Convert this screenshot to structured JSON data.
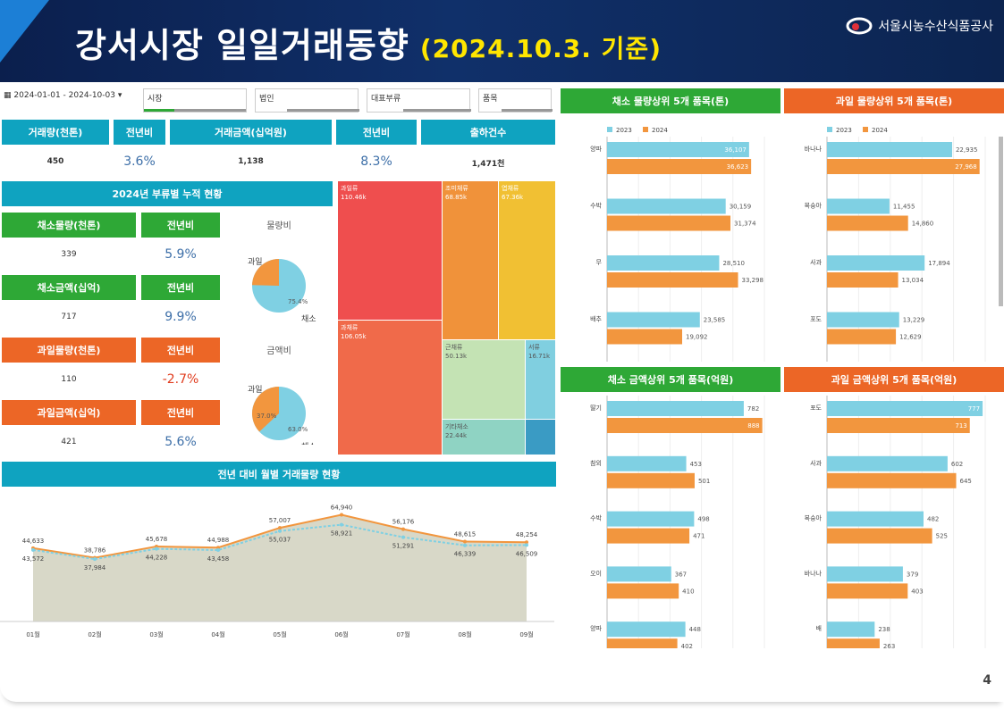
{
  "header": {
    "title": "강서시장 일일거래동향",
    "date": "(2024.10.3. 기준)",
    "logo_text": "서울시농수산식품공사"
  },
  "filters": {
    "date_range": "2024-01-01 - 2024-10-03",
    "market": "시장",
    "corp": "법인",
    "category": "대표부류",
    "item": "품목"
  },
  "kpi": {
    "labels": [
      "거래량(천톤)",
      "전년비",
      "거래금액(십억원)",
      "전년비",
      "출하건수"
    ],
    "values": [
      "450",
      "3.6%",
      "1,138",
      "8.3%",
      "1,471천"
    ]
  },
  "cumulative": {
    "title": "2024년 부류별 누적 현황",
    "rows": [
      {
        "label": "채소물량(천톤)",
        "yoy_label": "전년비",
        "value": "339",
        "yoy": "5.9%",
        "color": "green"
      },
      {
        "label": "채소금액(십억)",
        "yoy_label": "전년비",
        "value": "717",
        "yoy": "9.9%",
        "color": "green"
      },
      {
        "label": "과일물량(천톤)",
        "yoy_label": "전년비",
        "value": "110",
        "yoy": "-2.7%",
        "color": "orange"
      },
      {
        "label": "과일금액(십억)",
        "yoy_label": "전년비",
        "value": "421",
        "yoy": "5.6%",
        "color": "orange"
      }
    ],
    "pie1": {
      "title": "물량비",
      "fruit_label": "과일",
      "veg_label": "채소",
      "veg_pct": "75.4%",
      "veg": 75.4
    },
    "pie2": {
      "title": "금액비",
      "fruit_label": "과일",
      "veg_label": "채소",
      "veg_pct": "63.0%",
      "fruit_pct": "37.0%",
      "veg": 63.0
    }
  },
  "treemap": [
    {
      "name": "과일류",
      "value": "110.46k",
      "color": "#ef4e4e"
    },
    {
      "name": "조미채류",
      "value": "68.85k",
      "color": "#f0923a"
    },
    {
      "name": "엽채류",
      "value": "67.36k",
      "color": "#f1c033"
    },
    {
      "name": "과채류",
      "value": "106.05k",
      "color": "#f06a4a"
    },
    {
      "name": "근채류",
      "value": "50.13k",
      "color": "#c4e3b4"
    },
    {
      "name": "서류",
      "value": "16.71k",
      "color": "#80cfe0"
    },
    {
      "name": "기타채소",
      "value": "22.44k",
      "color": "#8fd3c3"
    },
    {
      "name": "",
      "value": "",
      "color": "#3a9bc4"
    }
  ],
  "monthly": {
    "title": "전년 대비 월별 거래물량 현황",
    "chart_data": {
      "type": "area",
      "categories": [
        "01월",
        "02월",
        "03월",
        "04월",
        "05월",
        "06월",
        "07월",
        "08월",
        "09월"
      ],
      "series": [
        {
          "values": [
            44633,
            38786,
            45678,
            44988,
            57007,
            64940,
            56176,
            48615,
            48254
          ],
          "labels": [
            "44,633",
            "38,786",
            "45,678",
            "44,988",
            "57,007",
            "64,940",
            "56,176",
            "48,615",
            "48,254"
          ]
        },
        {
          "values": [
            43572,
            37984,
            44228,
            43458,
            55037,
            58921,
            51291,
            46339,
            46509
          ],
          "labels": [
            "43,572",
            "37,984",
            "44,228",
            "43,458",
            "55,037",
            "58,921",
            "51,291",
            "46,339",
            "46,509"
          ]
        }
      ]
    }
  },
  "top_panels": [
    {
      "title": "채소 물량상위 5개 품목(톤)",
      "color": "green",
      "legend": [
        "2023",
        "2024"
      ],
      "chart_data": {
        "type": "bar",
        "categories": [
          "양파",
          "수박",
          "무",
          "배추"
        ],
        "series": [
          {
            "name": "2023",
            "values": [
              36107,
              30159,
              28510,
              23585
            ],
            "labels": [
              "36,107",
              "30,159",
              "28,510",
              "23,585"
            ]
          },
          {
            "name": "2024",
            "values": [
              36623,
              31374,
              33298,
              19092
            ],
            "labels": [
              "36,623",
              "31,374",
              "33,298",
              "19,092"
            ]
          }
        ],
        "xmax": 40000
      }
    },
    {
      "title": "과일 물량상위 5개 품목(톤)",
      "color": "orange",
      "legend": [
        "2023",
        "2024"
      ],
      "chart_data": {
        "type": "bar",
        "categories": [
          "바나나",
          "복숭아",
          "사과",
          "포도"
        ],
        "series": [
          {
            "name": "2023",
            "values": [
              22935,
              11455,
              17894,
              13229
            ],
            "labels": [
              "22,935",
              "11,455",
              "17,894",
              "13,229"
            ]
          },
          {
            "name": "2024",
            "values": [
              27968,
              14860,
              13034,
              12629
            ],
            "labels": [
              "27,968",
              "14,860",
              "13,034",
              "12,629"
            ]
          }
        ],
        "xmax": 29000
      }
    },
    {
      "title": "채소 금액상위 5개 품목(억원)",
      "color": "green",
      "legend": [],
      "chart_data": {
        "type": "bar",
        "categories": [
          "딸기",
          "참외",
          "수박",
          "오이",
          "양파"
        ],
        "series": [
          {
            "name": "2023",
            "values": [
              782,
              453,
              498,
              367,
              448
            ],
            "labels": [
              "782",
              "453",
              "498",
              "367",
              "448"
            ]
          },
          {
            "name": "2024",
            "values": [
              888,
              501,
              471,
              410,
              402
            ],
            "labels": [
              "888",
              "501",
              "471",
              "410",
              "402"
            ]
          }
        ],
        "xmax": 900
      }
    },
    {
      "title": "과일 금액상위 5개 품목(억원)",
      "color": "orange",
      "legend": [],
      "chart_data": {
        "type": "bar",
        "categories": [
          "포도",
          "사과",
          "복숭아",
          "바나나",
          "배"
        ],
        "series": [
          {
            "name": "2023",
            "values": [
              777,
              602,
              482,
              379,
              238
            ],
            "labels": [
              "777",
              "602",
              "482",
              "379",
              "238"
            ]
          },
          {
            "name": "2024",
            "values": [
              713,
              645,
              525,
              403,
              263
            ],
            "labels": [
              "713",
              "645",
              "525",
              "403",
              "263"
            ]
          }
        ],
        "xmax": 790
      }
    }
  ],
  "colors": {
    "c2023": "#7fd0e3",
    "c2024": "#f2963e",
    "area": "#d8d8c8",
    "line2024": "#f2963e",
    "line2023": "#7fd0e3"
  },
  "page_number": "4"
}
